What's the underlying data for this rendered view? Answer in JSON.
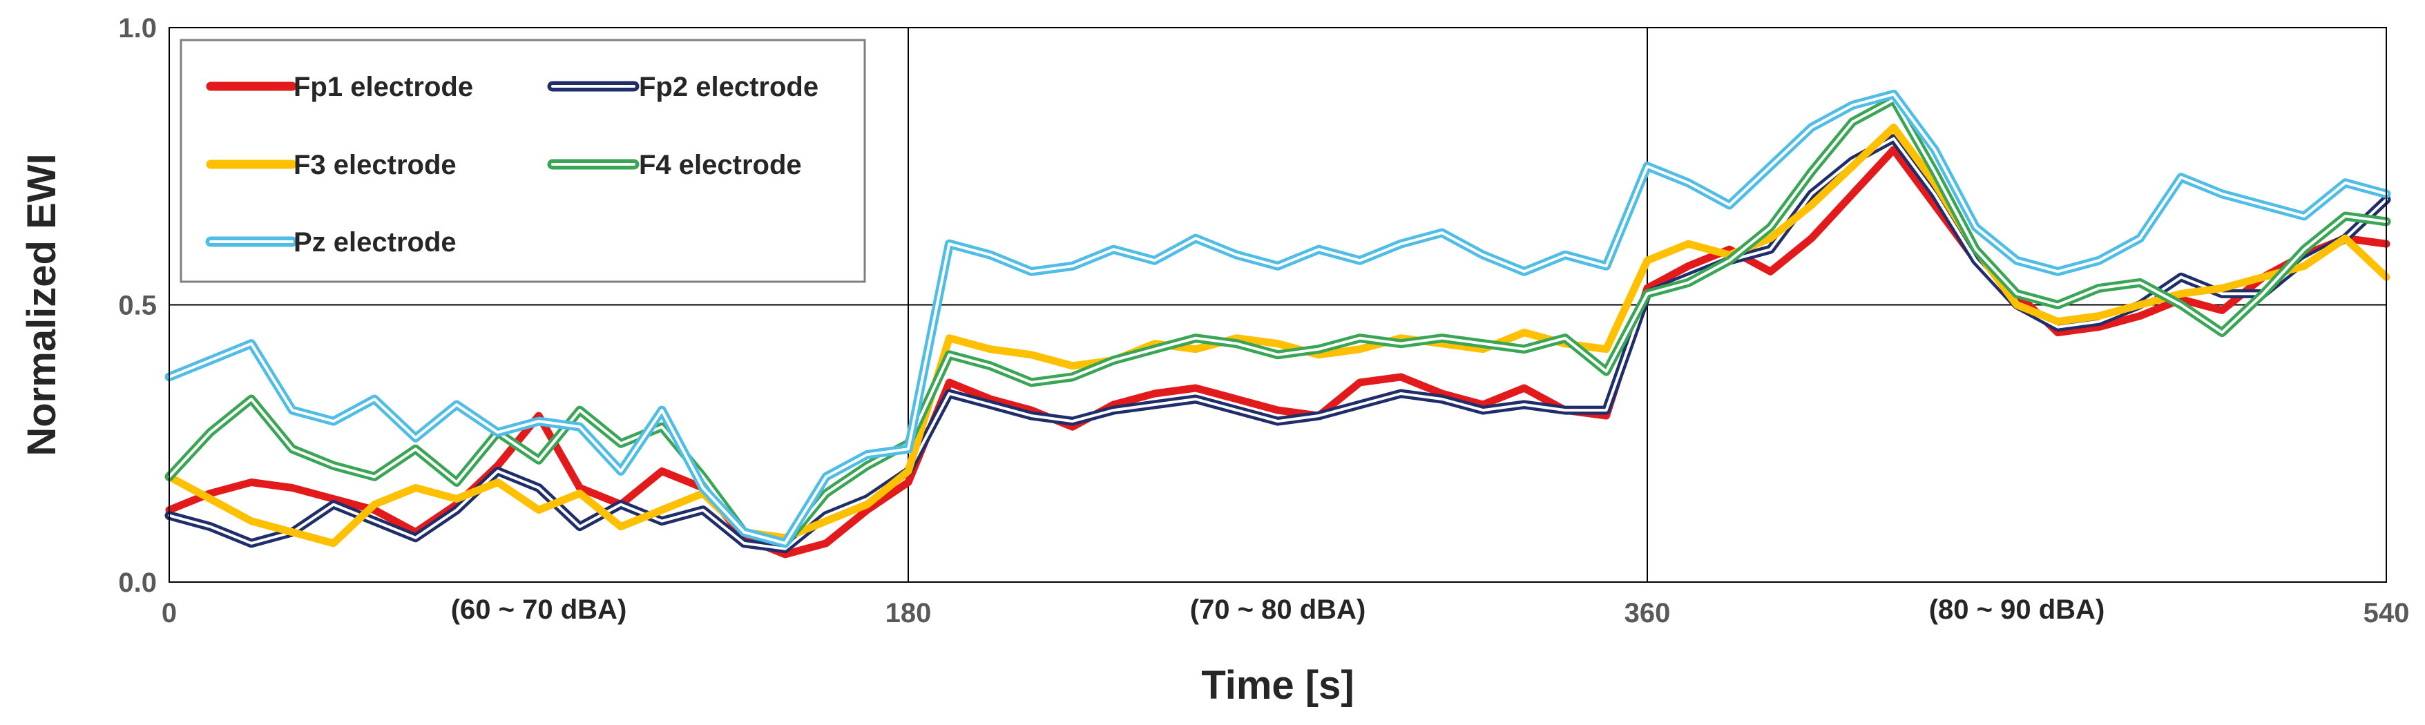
{
  "chart_data": {
    "type": "line",
    "title": "",
    "xlabel": "Time [s]",
    "ylabel": "Normalized EWI",
    "xlim": [
      0,
      540
    ],
    "ylim": [
      0,
      1
    ],
    "x_ticks": [
      0,
      180,
      360,
      540
    ],
    "x_tick_labels": [
      "0",
      "180",
      "360",
      "540"
    ],
    "y_ticks": [
      0,
      0.5,
      1
    ],
    "y_tick_labels": [
      "0.0",
      "0.5",
      "1.0"
    ],
    "grid": "horizontal at 0.5 and 1.0; vertical at 180 and 360",
    "legend_position": "top-left",
    "regions": [
      {
        "label": "(60 ~ 70 dBA)",
        "x_center": 90
      },
      {
        "label": "(70 ~ 80 dBA)",
        "x_center": 270
      },
      {
        "label": "(80 ~ 90 dBA)",
        "x_center": 450
      }
    ],
    "series": [
      {
        "name": "Fp1 electrode",
        "color": "#e31a1c",
        "double_line": false,
        "x": [
          0,
          10,
          20,
          30,
          40,
          50,
          60,
          70,
          80,
          90,
          100,
          110,
          120,
          130,
          140,
          150,
          160,
          170,
          180,
          190,
          200,
          210,
          220,
          230,
          240,
          250,
          260,
          270,
          280,
          290,
          300,
          310,
          320,
          330,
          340,
          350,
          360,
          370,
          380,
          390,
          400,
          410,
          420,
          430,
          440,
          450,
          460,
          470,
          480,
          490,
          500,
          510,
          520,
          530,
          540
        ],
        "y": [
          0.13,
          0.16,
          0.18,
          0.17,
          0.15,
          0.13,
          0.09,
          0.14,
          0.21,
          0.3,
          0.17,
          0.14,
          0.2,
          0.17,
          0.08,
          0.05,
          0.07,
          0.13,
          0.18,
          0.36,
          0.33,
          0.31,
          0.28,
          0.32,
          0.34,
          0.35,
          0.33,
          0.31,
          0.3,
          0.36,
          0.37,
          0.34,
          0.32,
          0.35,
          0.31,
          0.3,
          0.53,
          0.57,
          0.6,
          0.56,
          0.62,
          0.7,
          0.78,
          0.68,
          0.58,
          0.52,
          0.45,
          0.46,
          0.48,
          0.51,
          0.49,
          0.55,
          0.59,
          0.62,
          0.61
        ]
      },
      {
        "name": "Fp2 electrode",
        "color": "#1f2d6b",
        "double_line": true,
        "x": [
          0,
          10,
          20,
          30,
          40,
          50,
          60,
          70,
          80,
          90,
          100,
          110,
          120,
          130,
          140,
          150,
          160,
          170,
          180,
          190,
          200,
          210,
          220,
          230,
          240,
          250,
          260,
          270,
          280,
          290,
          300,
          310,
          320,
          330,
          340,
          350,
          360,
          370,
          380,
          390,
          400,
          410,
          420,
          430,
          440,
          450,
          460,
          470,
          480,
          490,
          500,
          510,
          520,
          530,
          540
        ],
        "y": [
          0.12,
          0.1,
          0.07,
          0.09,
          0.14,
          0.11,
          0.08,
          0.13,
          0.2,
          0.17,
          0.1,
          0.14,
          0.11,
          0.13,
          0.07,
          0.06,
          0.12,
          0.15,
          0.2,
          0.34,
          0.32,
          0.3,
          0.29,
          0.31,
          0.32,
          0.33,
          0.31,
          0.29,
          0.3,
          0.32,
          0.34,
          0.33,
          0.31,
          0.32,
          0.31,
          0.31,
          0.52,
          0.55,
          0.58,
          0.6,
          0.7,
          0.76,
          0.8,
          0.7,
          0.58,
          0.5,
          0.46,
          0.47,
          0.5,
          0.55,
          0.52,
          0.52,
          0.58,
          0.62,
          0.69
        ]
      },
      {
        "name": "F3 electrode",
        "color": "#ffc000",
        "double_line": false,
        "x": [
          0,
          10,
          20,
          30,
          40,
          50,
          60,
          70,
          80,
          90,
          100,
          110,
          120,
          130,
          140,
          150,
          160,
          170,
          180,
          190,
          200,
          210,
          220,
          230,
          240,
          250,
          260,
          270,
          280,
          290,
          300,
          310,
          320,
          330,
          340,
          350,
          360,
          370,
          380,
          390,
          400,
          410,
          420,
          430,
          440,
          450,
          460,
          470,
          480,
          490,
          500,
          510,
          520,
          530,
          540
        ],
        "y": [
          0.19,
          0.15,
          0.11,
          0.09,
          0.07,
          0.14,
          0.17,
          0.15,
          0.18,
          0.13,
          0.16,
          0.1,
          0.13,
          0.16,
          0.09,
          0.08,
          0.11,
          0.14,
          0.2,
          0.44,
          0.42,
          0.41,
          0.39,
          0.4,
          0.43,
          0.42,
          0.44,
          0.43,
          0.41,
          0.42,
          0.44,
          0.43,
          0.42,
          0.45,
          0.43,
          0.42,
          0.58,
          0.61,
          0.59,
          0.62,
          0.68,
          0.75,
          0.82,
          0.72,
          0.6,
          0.5,
          0.47,
          0.48,
          0.5,
          0.52,
          0.53,
          0.55,
          0.57,
          0.62,
          0.55
        ]
      },
      {
        "name": "F4 electrode",
        "color": "#3aa655",
        "double_line": true,
        "x": [
          0,
          10,
          20,
          30,
          40,
          50,
          60,
          70,
          80,
          90,
          100,
          110,
          120,
          130,
          140,
          150,
          160,
          170,
          180,
          190,
          200,
          210,
          220,
          230,
          240,
          250,
          260,
          270,
          280,
          290,
          300,
          310,
          320,
          330,
          340,
          350,
          360,
          370,
          380,
          390,
          400,
          410,
          420,
          430,
          440,
          450,
          460,
          470,
          480,
          490,
          500,
          510,
          520,
          530,
          540
        ],
        "y": [
          0.19,
          0.27,
          0.33,
          0.24,
          0.21,
          0.19,
          0.24,
          0.18,
          0.27,
          0.22,
          0.31,
          0.25,
          0.28,
          0.19,
          0.09,
          0.07,
          0.16,
          0.21,
          0.25,
          0.41,
          0.39,
          0.36,
          0.37,
          0.4,
          0.42,
          0.44,
          0.43,
          0.41,
          0.42,
          0.44,
          0.43,
          0.44,
          0.43,
          0.42,
          0.44,
          0.38,
          0.52,
          0.54,
          0.58,
          0.64,
          0.74,
          0.83,
          0.87,
          0.74,
          0.6,
          0.52,
          0.5,
          0.53,
          0.54,
          0.5,
          0.45,
          0.52,
          0.6,
          0.66,
          0.65
        ]
      },
      {
        "name": "Pz electrode",
        "color": "#4fbde6",
        "double_line": true,
        "x": [
          0,
          10,
          20,
          30,
          40,
          50,
          60,
          70,
          80,
          90,
          100,
          110,
          120,
          130,
          140,
          150,
          160,
          170,
          180,
          190,
          200,
          210,
          220,
          230,
          240,
          250,
          260,
          270,
          280,
          290,
          300,
          310,
          320,
          330,
          340,
          350,
          360,
          370,
          380,
          390,
          400,
          410,
          420,
          430,
          440,
          450,
          460,
          470,
          480,
          490,
          500,
          510,
          520,
          530,
          540
        ],
        "y": [
          0.37,
          0.4,
          0.43,
          0.31,
          0.29,
          0.33,
          0.26,
          0.32,
          0.27,
          0.29,
          0.28,
          0.2,
          0.31,
          0.17,
          0.09,
          0.07,
          0.19,
          0.23,
          0.24,
          0.61,
          0.59,
          0.56,
          0.57,
          0.6,
          0.58,
          0.62,
          0.59,
          0.57,
          0.6,
          0.58,
          0.61,
          0.63,
          0.59,
          0.56,
          0.59,
          0.57,
          0.75,
          0.72,
          0.68,
          0.75,
          0.82,
          0.86,
          0.88,
          0.78,
          0.64,
          0.58,
          0.56,
          0.58,
          0.62,
          0.73,
          0.7,
          0.68,
          0.66,
          0.72,
          0.7
        ]
      }
    ]
  }
}
